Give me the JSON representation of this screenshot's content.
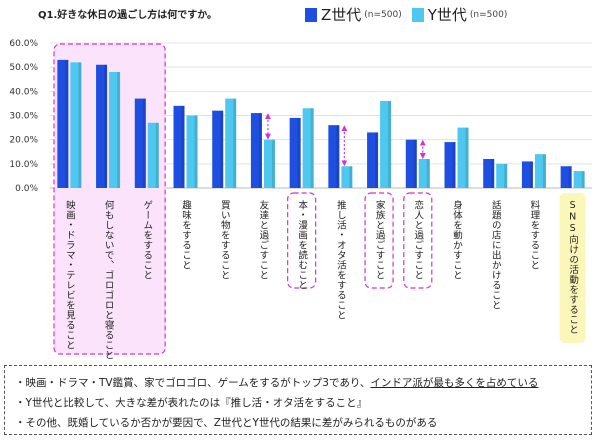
{
  "chart_data": {
    "type": "bar",
    "title": "Q1.好きな休日の過ごし方は何ですか。",
    "ylim": [
      0,
      60
    ],
    "yticks": [
      "0.0%",
      "10.0%",
      "20.0%",
      "30.0%",
      "40.0%",
      "50.0%",
      "60.0%"
    ],
    "grid": true,
    "categories": [
      "映画・ドラマ・テレビを見ること",
      "何もしないで、ゴロゴロと寝ること",
      "ゲームをすること",
      "趣味をすること",
      "買い物をすること",
      "友達と過ごすこと",
      "本・漫画を読むこと",
      "推し活・オタ活をすること",
      "家族と過ごすこと",
      "恋人と過ごすこと",
      "身体を動かすこと",
      "話題の店に出かけること",
      "料理をすること",
      "SNS向けの活動をすること"
    ],
    "series": [
      {
        "name": "Z世代",
        "n_label": "(n=500)",
        "color": "#1f4fe0",
        "values": [
          53,
          51,
          37,
          34,
          32,
          31,
          29,
          26,
          23,
          20,
          19,
          12,
          11,
          9
        ]
      },
      {
        "name": "Y世代",
        "n_label": "(n=500)",
        "color": "#4fc8f0",
        "values": [
          52,
          48,
          27,
          30,
          37,
          20,
          33,
          9,
          36,
          12,
          25,
          10,
          14,
          7
        ]
      }
    ]
  },
  "notes": [
    {
      "pre": "・映画・ドラマ・TV鑑賞、家でゴロゴロ、ゲームをするがトップ3であり、",
      "em": "インドア派が最も多くを占めている",
      "post": ""
    },
    {
      "pre": "・Y世代と比較して、大きな差が表れたのは『推し活・オタ活をすること』",
      "em": "",
      "post": ""
    },
    {
      "pre": "・その他、既婚しているか否かが要因で、Z世代とY世代の結果に差がみられるものがある",
      "em": "",
      "post": ""
    }
  ]
}
